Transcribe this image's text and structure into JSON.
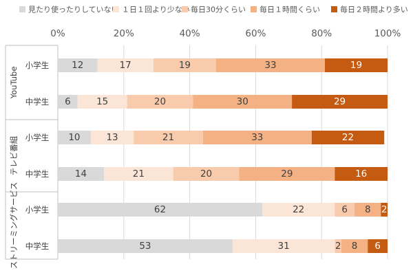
{
  "chart_data": {
    "type": "bar",
    "orientation": "horizontal",
    "stacked": "percent",
    "title": "",
    "xlabel": "",
    "ylabel": "",
    "xlim": [
      0,
      100
    ],
    "x_ticks": [
      "0%",
      "20%",
      "40%",
      "60%",
      "80%",
      "100%"
    ],
    "grid": true,
    "legend_position": "top",
    "series": [
      {
        "name": "見たり使ったりしていない",
        "color": "#d9d9d9",
        "label_color": "#404040"
      },
      {
        "name": "１日１回より少ない",
        "color": "#fbe5d6",
        "label_color": "#404040"
      },
      {
        "name": "毎日30分くらい",
        "color": "#f8cbad",
        "label_color": "#404040"
      },
      {
        "name": "毎日１時間くらい",
        "color": "#f4b183",
        "label_color": "#404040"
      },
      {
        "name": "毎日２時間より多い",
        "color": "#c55a11",
        "label_color": "#ffffff"
      }
    ],
    "groups": [
      {
        "name": "YouTube",
        "rows": [
          {
            "label": "小学生",
            "values": [
              12,
              17,
              19,
              33,
              19
            ]
          },
          {
            "label": "中学生",
            "values": [
              6,
              15,
              20,
              30,
              29
            ]
          }
        ]
      },
      {
        "name": "テレビ番組",
        "rows": [
          {
            "label": "小学生",
            "values": [
              10,
              13,
              21,
              33,
              22
            ]
          },
          {
            "label": "中学生",
            "values": [
              14,
              21,
              20,
              29,
              16
            ]
          }
        ]
      },
      {
        "name": "ストリーミングサービス",
        "rows": [
          {
            "label": "小学生",
            "values": [
              62,
              22,
              6,
              8,
              2
            ]
          },
          {
            "label": "中学生",
            "values": [
              53,
              31,
              2,
              8,
              6
            ]
          }
        ]
      }
    ]
  }
}
